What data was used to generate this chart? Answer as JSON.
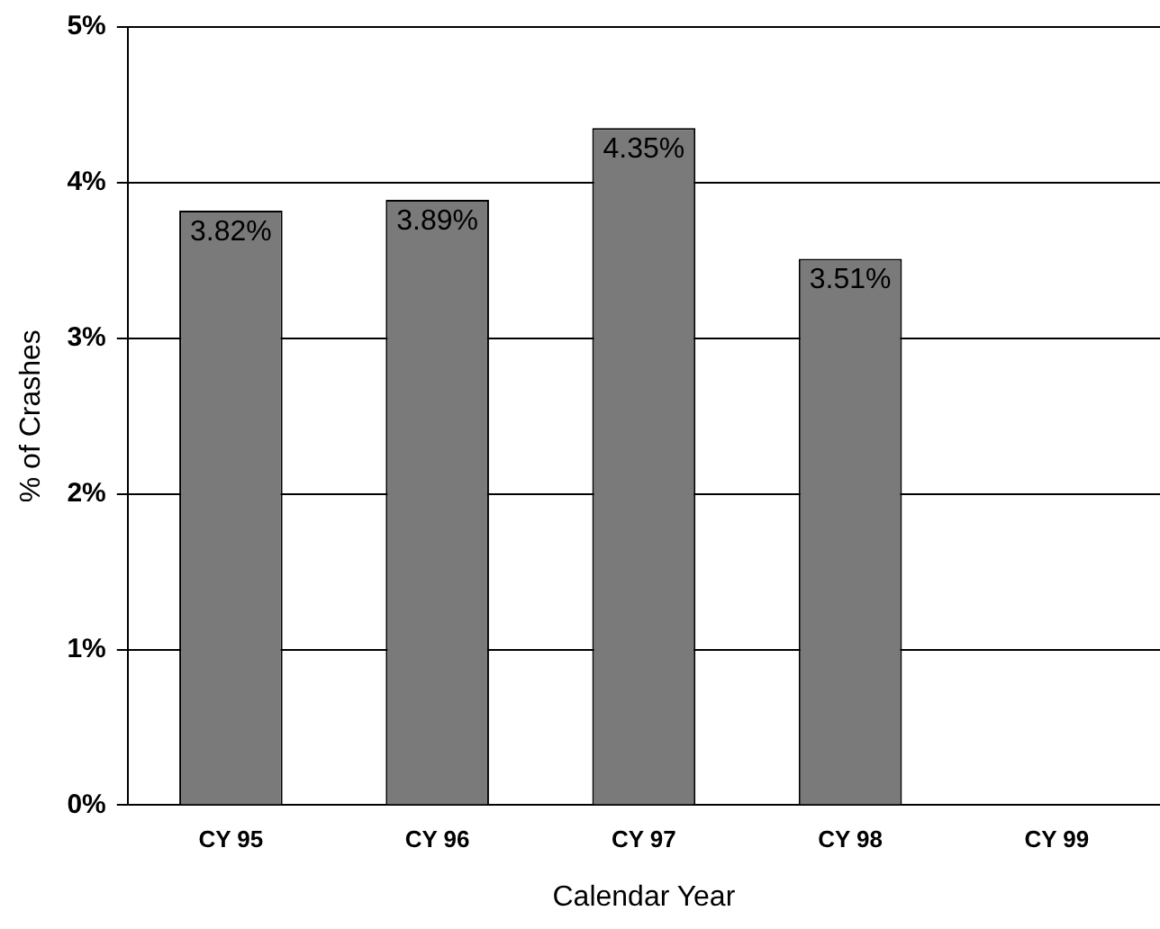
{
  "chart_data": {
    "type": "bar",
    "xlabel": "Calendar Year",
    "ylabel": "% of Crashes",
    "categories": [
      "CY 95",
      "CY 96",
      "CY 97",
      "CY 98",
      "CY 99"
    ],
    "values": [
      3.82,
      3.89,
      4.35,
      3.51,
      null
    ],
    "value_labels": [
      "3.82%",
      "3.89%",
      "4.35%",
      "3.51%",
      null
    ],
    "color": "#7a7a7a",
    "ylim": [
      0,
      5
    ],
    "yticks": [
      {
        "value": 0,
        "label": "0%"
      },
      {
        "value": 1,
        "label": "1%"
      },
      {
        "value": 2,
        "label": "2%"
      },
      {
        "value": 3,
        "label": "3%"
      },
      {
        "value": 4,
        "label": "4%"
      },
      {
        "value": 5,
        "label": "5%"
      }
    ],
    "grid": "y",
    "legend": false
  }
}
